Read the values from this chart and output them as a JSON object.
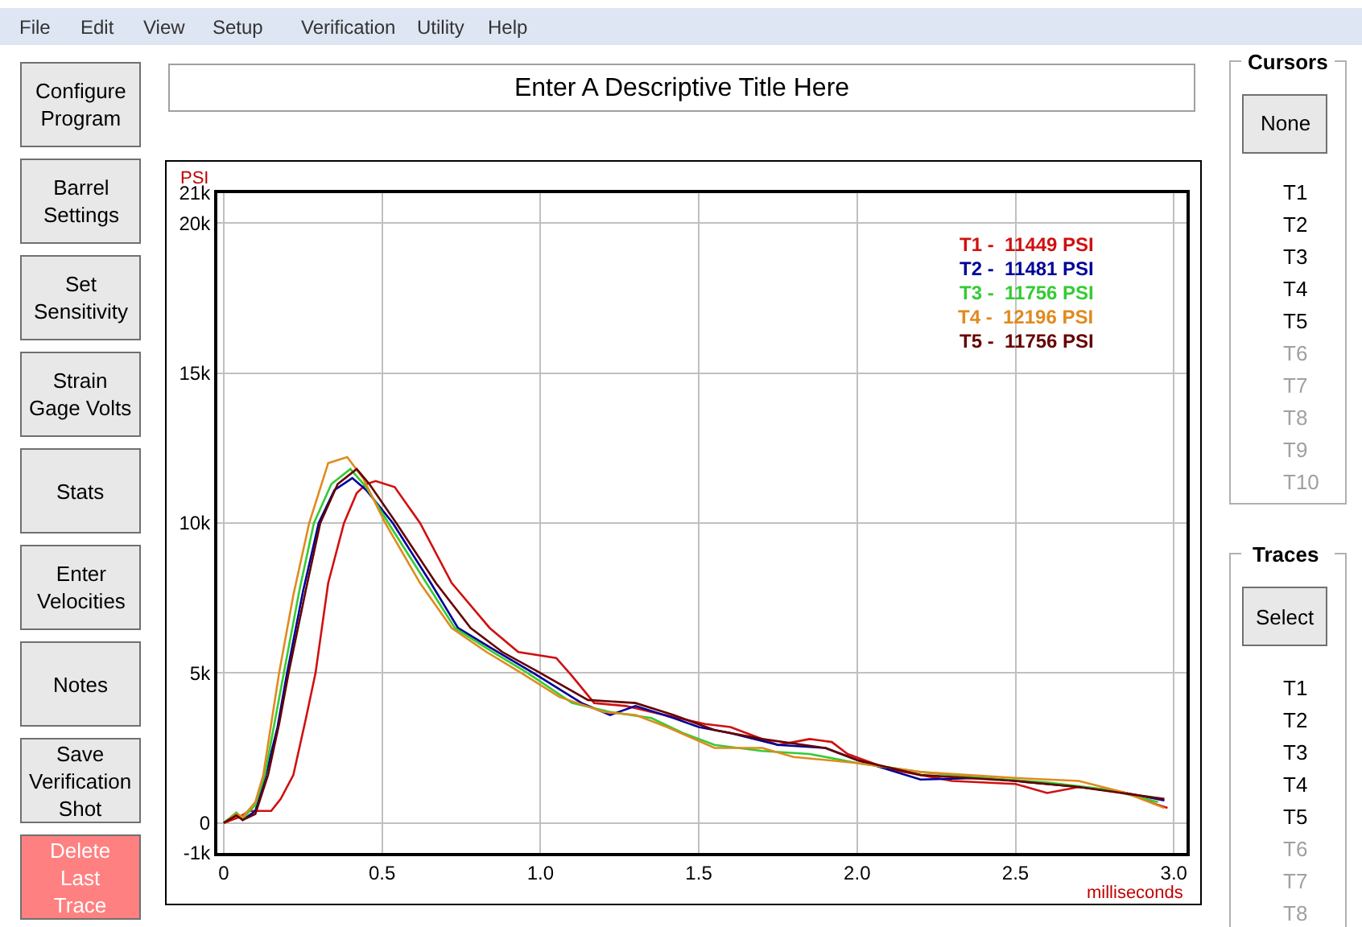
{
  "chart_data": {
    "type": "line",
    "title": "Enter A Descriptive Title Here",
    "xlabel": "milliseconds",
    "ylabel": "PSI",
    "xlim": [
      -0.02,
      3.04
    ],
    "ylim": [
      -1000,
      21000
    ],
    "xticks": [
      0,
      0.5,
      {
        "value": 1,
        "label": "1.0"
      },
      1.5,
      {
        "value": 2,
        "label": "2.0"
      },
      2.5,
      {
        "value": 3,
        "label": "3.0"
      }
    ],
    "yticks": [
      {
        "value": -1000,
        "label": "-1k"
      },
      0,
      {
        "value": 5000,
        "label": "5k"
      },
      {
        "value": 10000,
        "label": "10k"
      },
      {
        "value": 15000,
        "label": "15k"
      },
      {
        "value": 20000,
        "label": "20k"
      },
      {
        "value": 21000,
        "label": "21k"
      }
    ],
    "grid": true,
    "legend": "top right",
    "marker": "none",
    "line_style": "solid",
    "series": [
      {
        "name": "T1 -  11449 PSI",
        "color": "#d01010",
        "x": [
          0,
          0.05,
          0.08,
          0.15,
          0.18,
          0.22,
          0.26,
          0.29,
          0.33,
          0.38,
          0.42,
          0.45,
          0.48,
          0.54,
          0.62,
          0.72,
          0.84,
          0.93,
          1.05,
          1.1,
          1.17,
          1.27,
          1.35,
          1.52,
          1.6,
          1.75,
          1.85,
          1.92,
          1.97,
          2.1,
          2.3,
          2.5,
          2.6,
          2.7,
          2.85,
          2.95,
          2.98
        ],
        "values": [
          0,
          200,
          400,
          400,
          800,
          1600,
          3500,
          5000,
          8000,
          10000,
          11000,
          11300,
          11400,
          11200,
          10000,
          8000,
          6500,
          5700,
          5500,
          4900,
          4000,
          3900,
          3700,
          3300,
          3200,
          2600,
          2800,
          2700,
          2300,
          1800,
          1400,
          1300,
          1000,
          1200,
          1000,
          600,
          500
        ]
      },
      {
        "name": "T2 -  11481 PSI",
        "color": "#000099",
        "x": [
          0,
          0.04,
          0.06,
          0.1,
          0.133,
          0.17,
          0.2,
          0.25,
          0.3,
          0.35,
          0.406,
          0.45,
          0.534,
          0.654,
          0.74,
          0.85,
          0.978,
          1.13,
          1.22,
          1.3,
          1.42,
          1.5,
          1.6,
          1.75,
          1.9,
          2.0,
          2.2,
          2.4,
          2.6,
          2.8,
          2.97
        ],
        "values": [
          0,
          300,
          100,
          400,
          1600,
          3200,
          5000,
          7700,
          10000,
          11100,
          11500,
          11100,
          10000,
          8000,
          6500,
          5800,
          5000,
          4000,
          3600,
          3900,
          3500,
          3200,
          3000,
          2600,
          2500,
          2100,
          1450,
          1500,
          1300,
          1100,
          750
        ]
      },
      {
        "name": "T3 -  11756 PSI",
        "color": "#33cc33",
        "x": [
          0,
          0.04,
          0.06,
          0.1,
          0.13,
          0.16,
          0.19,
          0.24,
          0.285,
          0.34,
          0.4,
          0.45,
          0.52,
          0.64,
          0.73,
          0.85,
          0.96,
          1.1,
          1.22,
          1.35,
          1.45,
          1.55,
          1.7,
          1.85,
          2.0,
          2.2,
          2.4,
          2.6,
          2.8,
          2.95
        ],
        "values": [
          0,
          350,
          150,
          600,
          1600,
          3300,
          5000,
          7800,
          10000,
          11300,
          11800,
          11200,
          10000,
          8000,
          6500,
          5700,
          5000,
          4000,
          3700,
          3500,
          3000,
          2600,
          2400,
          2300,
          2000,
          1700,
          1500,
          1350,
          1100,
          700
        ]
      },
      {
        "name": "T4 -  12196 PSI",
        "color": "#e08a1e",
        "x": [
          0,
          0.04,
          0.06,
          0.1,
          0.125,
          0.15,
          0.175,
          0.22,
          0.27,
          0.33,
          0.39,
          0.44,
          0.51,
          0.62,
          0.72,
          0.83,
          0.94,
          1.06,
          1.2,
          1.3,
          1.4,
          1.55,
          1.7,
          1.8,
          2.0,
          2.2,
          2.5,
          2.7,
          2.85,
          2.97
        ],
        "values": [
          0,
          300,
          200,
          700,
          1600,
          3300,
          5000,
          7600,
          10000,
          12000,
          12200,
          11500,
          10000,
          8000,
          6500,
          5700,
          5000,
          4200,
          3700,
          3600,
          3200,
          2500,
          2500,
          2200,
          2000,
          1700,
          1500,
          1400,
          1000,
          500
        ]
      },
      {
        "name": "T5 -  11756 PSI",
        "color": "#660000",
        "x": [
          0,
          0.04,
          0.06,
          0.1,
          0.14,
          0.175,
          0.205,
          0.26,
          0.305,
          0.36,
          0.42,
          0.46,
          0.545,
          0.67,
          0.78,
          0.88,
          1.0,
          1.15,
          1.3,
          1.42,
          1.55,
          1.7,
          1.9,
          2.0,
          2.2,
          2.5,
          2.7,
          2.97
        ],
        "values": [
          0,
          250,
          100,
          300,
          1600,
          3300,
          5000,
          7800,
          10000,
          11300,
          11800,
          11300,
          10000,
          8000,
          6500,
          5700,
          5000,
          4100,
          4000,
          3600,
          3100,
          2800,
          2500,
          2100,
          1600,
          1400,
          1200,
          800
        ]
      }
    ],
    "annotations": [
      "File",
      "Edit",
      "View",
      "Setup",
      "Verification",
      "Utility",
      "Help",
      "Configure\nProgram",
      "Barrel\nSettings",
      "Set\nSensitivity",
      "Strain\nGage Volts",
      "Stats",
      "Enter\nVelocities",
      "Notes",
      "Save\nVerification\nShot",
      "Delete\nLast\nTrace",
      "Cursors",
      "None",
      "T1",
      "T2",
      "T3",
      "T4",
      "T5",
      "T6",
      "T7",
      "T8",
      "T9",
      "T10",
      "Traces",
      "Select",
      "T1",
      "T2",
      "T3",
      "T4",
      "T5",
      "T6",
      "T7",
      "T8"
    ]
  }
}
